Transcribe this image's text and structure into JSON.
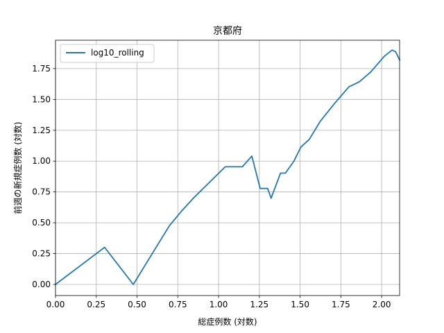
{
  "chart_data": {
    "type": "line",
    "title": "京都府",
    "xlabel": "総症例数 (対数)",
    "ylabel": "前週の新規症例数 (対数)",
    "xlim": [
      0.0,
      2.11
    ],
    "ylim": [
      -0.09,
      1.98
    ],
    "xticks": [
      "0.00",
      "0.25",
      "0.50",
      "0.75",
      "1.00",
      "1.25",
      "1.50",
      "1.75",
      "2.00"
    ],
    "xtick_values": [
      0.0,
      0.25,
      0.5,
      0.75,
      1.0,
      1.25,
      1.5,
      1.75,
      2.0
    ],
    "yticks": [
      "0.00",
      "0.25",
      "0.50",
      "0.75",
      "1.00",
      "1.25",
      "1.50",
      "1.75"
    ],
    "ytick_values": [
      0.0,
      0.25,
      0.5,
      0.75,
      1.0,
      1.25,
      1.5,
      1.75
    ],
    "grid": true,
    "legend": {
      "position": "top-left"
    },
    "color": "#1f77b4",
    "series": [
      {
        "name": "log10_rolling",
        "x": [
          0.0,
          0.301,
          0.477,
          0.699,
          0.778,
          0.845,
          1.041,
          1.146,
          1.204,
          1.255,
          1.301,
          1.322,
          1.38,
          1.41,
          1.462,
          1.505,
          1.556,
          1.623,
          1.708,
          1.799,
          1.863,
          1.934,
          2.017,
          2.064,
          2.086,
          2.11
        ],
        "y": [
          0.0,
          0.301,
          0.0,
          0.477,
          0.602,
          0.699,
          0.954,
          0.954,
          1.041,
          0.778,
          0.778,
          0.699,
          0.903,
          0.903,
          1.0,
          1.114,
          1.176,
          1.322,
          1.462,
          1.602,
          1.643,
          1.724,
          1.851,
          1.9,
          1.886,
          1.82
        ]
      }
    ]
  }
}
